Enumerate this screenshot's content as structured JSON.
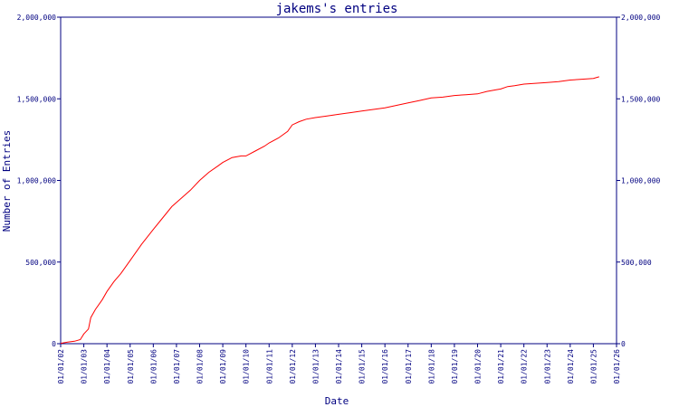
{
  "chart_data": {
    "type": "line",
    "title": "jakems's entries",
    "xlabel": "Date",
    "ylabel": "Number of Entries",
    "ylim": [
      0,
      2000000
    ],
    "yticks": [
      {
        "value": 0,
        "label": "0"
      },
      {
        "value": 500000,
        "label": "500,000"
      },
      {
        "value": 1000000,
        "label": "1,000,000"
      },
      {
        "value": 1500000,
        "label": "1,500,000"
      },
      {
        "value": 2000000,
        "label": "2,000,000"
      }
    ],
    "right_yticks": [
      {
        "value": 0,
        "label": "0"
      },
      {
        "value": 500000,
        "label": "500,000"
      },
      {
        "value": 1000000,
        "label": "1,000,000"
      },
      {
        "value": 1500000,
        "label": "1,500,000"
      },
      {
        "value": 2000000,
        "label": "2,000,000"
      }
    ],
    "xlim": [
      2002,
      2026
    ],
    "xticks": [
      {
        "value": 2002,
        "label": "01/01/02"
      },
      {
        "value": 2003,
        "label": "01/01/03"
      },
      {
        "value": 2004,
        "label": "01/01/04"
      },
      {
        "value": 2005,
        "label": "01/01/05"
      },
      {
        "value": 2006,
        "label": "01/01/06"
      },
      {
        "value": 2007,
        "label": "01/01/07"
      },
      {
        "value": 2008,
        "label": "01/01/08"
      },
      {
        "value": 2009,
        "label": "01/01/09"
      },
      {
        "value": 2010,
        "label": "01/01/10"
      },
      {
        "value": 2011,
        "label": "01/01/11"
      },
      {
        "value": 2012,
        "label": "01/01/12"
      },
      {
        "value": 2013,
        "label": "01/01/13"
      },
      {
        "value": 2014,
        "label": "01/01/14"
      },
      {
        "value": 2015,
        "label": "01/01/15"
      },
      {
        "value": 2016,
        "label": "01/01/16"
      },
      {
        "value": 2017,
        "label": "01/01/17"
      },
      {
        "value": 2018,
        "label": "01/01/18"
      },
      {
        "value": 2019,
        "label": "01/01/19"
      },
      {
        "value": 2020,
        "label": "01/01/20"
      },
      {
        "value": 2021,
        "label": "01/01/21"
      },
      {
        "value": 2022,
        "label": "01/01/22"
      },
      {
        "value": 2023,
        "label": "01/01/23"
      },
      {
        "value": 2024,
        "label": "01/01/24"
      },
      {
        "value": 2025,
        "label": "01/01/25"
      },
      {
        "value": 2026,
        "label": "01/01/26"
      }
    ],
    "series": [
      {
        "color": "#ff0000",
        "x": [
          2002.0,
          2002.3,
          2002.6,
          2002.85,
          2003.0,
          2003.2,
          2003.3,
          2003.5,
          2003.8,
          2004.0,
          2004.3,
          2004.6,
          2005.0,
          2005.5,
          2006.0,
          2006.4,
          2006.8,
          2007.2,
          2007.6,
          2008.0,
          2008.4,
          2008.8,
          2009.0,
          2009.4,
          2009.8,
          2010.0,
          2010.4,
          2010.8,
          2011.0,
          2011.4,
          2011.8,
          2012.0,
          2012.3,
          2012.6,
          2013.0,
          2013.5,
          2014.0,
          2014.5,
          2015.0,
          2015.5,
          2016.0,
          2016.5,
          2017.0,
          2017.5,
          2018.0,
          2018.5,
          2019.0,
          2019.5,
          2020.0,
          2020.4,
          2020.8,
          2021.0,
          2021.3,
          2021.6,
          2022.0,
          2022.5,
          2023.0,
          2023.5,
          2024.0,
          2024.5,
          2025.0,
          2025.25
        ],
        "y": [
          2000,
          10000,
          15000,
          25000,
          60000,
          90000,
          160000,
          210000,
          270000,
          320000,
          380000,
          430000,
          510000,
          610000,
          700000,
          770000,
          840000,
          890000,
          940000,
          1000000,
          1050000,
          1090000,
          1110000,
          1140000,
          1150000,
          1150000,
          1180000,
          1210000,
          1230000,
          1260000,
          1300000,
          1340000,
          1360000,
          1375000,
          1385000,
          1395000,
          1405000,
          1415000,
          1425000,
          1435000,
          1445000,
          1460000,
          1475000,
          1490000,
          1505000,
          1510000,
          1520000,
          1525000,
          1530000,
          1545000,
          1555000,
          1560000,
          1575000,
          1580000,
          1590000,
          1595000,
          1600000,
          1605000,
          1615000,
          1620000,
          1625000,
          1635000
        ]
      }
    ]
  }
}
